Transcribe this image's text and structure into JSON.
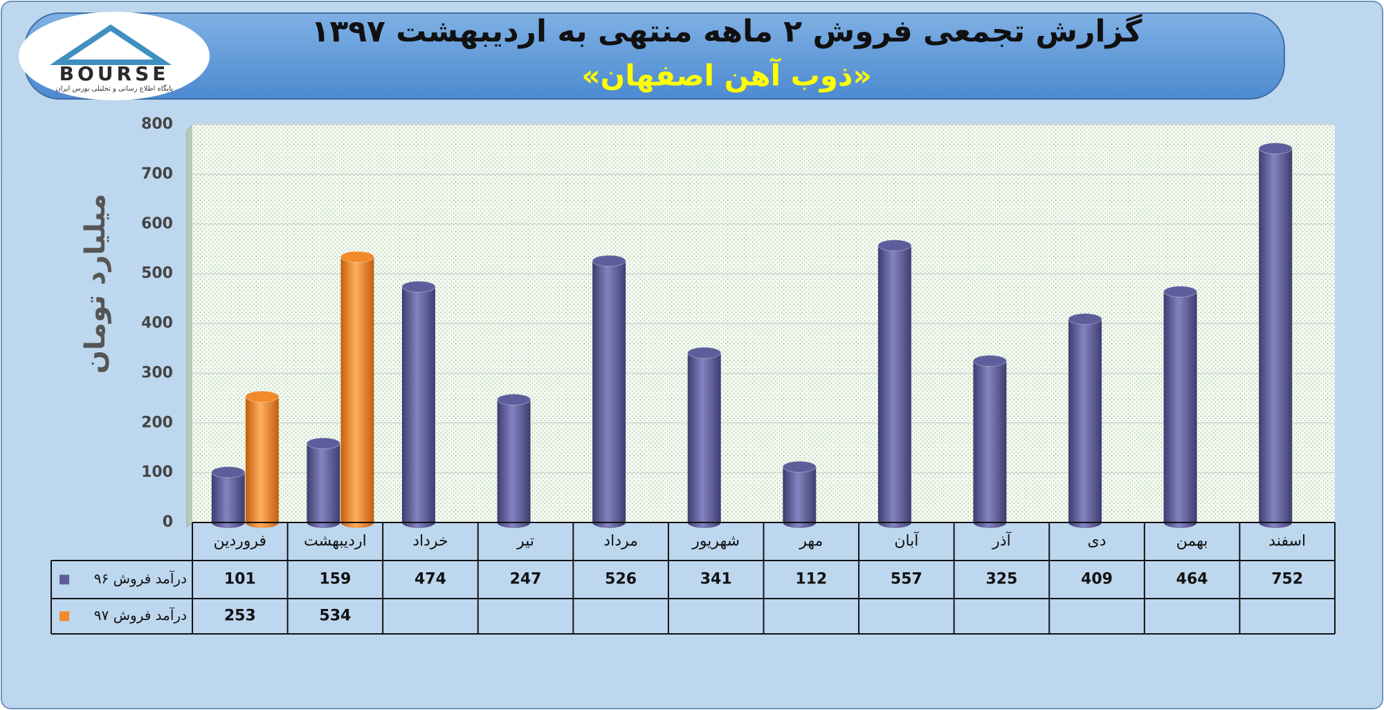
{
  "logo": {
    "text": "BOURSE",
    "tagline": "پایگاه اطلاع رسانی و تحلیلی بورس ایران"
  },
  "chart_data": {
    "type": "bar",
    "title": "گزارش تجمعی فروش ۲ ماهه منتهی به اردیبهشت ۱۳۹۷",
    "subtitle": "«ذوب آهن اصفهان»",
    "y_label": "میلیارد تومان",
    "categories": [
      "فروردین",
      "اردیبهشت",
      "خرداد",
      "تیر",
      "مرداد",
      "شهریور",
      "مهر",
      "آبان",
      "آذر",
      "دی",
      "بهمن",
      "اسفند"
    ],
    "series": [
      {
        "name": "درآمد فروش ۹۶",
        "color": "#5e5d9c",
        "values": [
          101,
          159,
          474,
          247,
          526,
          341,
          112,
          557,
          325,
          409,
          464,
          752
        ]
      },
      {
        "name": "درآمد فروش ۹۷",
        "color": "#f28a2a",
        "values": [
          253,
          534,
          null,
          null,
          null,
          null,
          null,
          null,
          null,
          null,
          null,
          null
        ]
      }
    ],
    "ylim": [
      0,
      800
    ],
    "yticks": [
      0,
      100,
      200,
      300,
      400,
      500,
      600,
      700,
      800
    ],
    "grid": true
  }
}
